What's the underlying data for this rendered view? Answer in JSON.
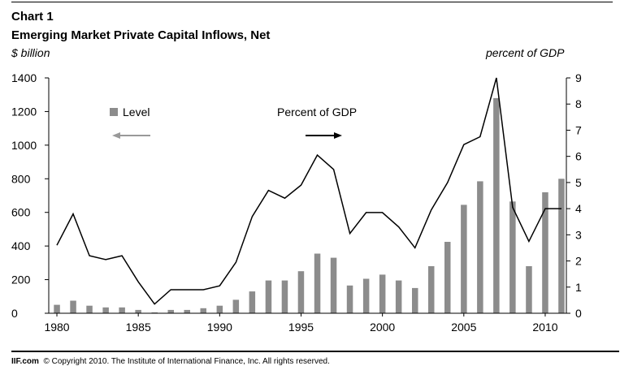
{
  "header": {
    "chart_number": "Chart 1",
    "title": "Emerging Market Private Capital Inflows, Net",
    "left_unit": "$ billion",
    "right_unit": "percent of GDP"
  },
  "footer": {
    "brand": "IIF.com",
    "notice": "© Copyright 2010.  The Institute of International Finance, Inc. All rights reserved."
  },
  "chart_data": {
    "type": "bar",
    "x": [
      1980,
      1981,
      1982,
      1983,
      1984,
      1985,
      1986,
      1987,
      1988,
      1989,
      1990,
      1991,
      1992,
      1993,
      1994,
      1995,
      1996,
      1997,
      1998,
      1999,
      2000,
      2001,
      2002,
      2003,
      2004,
      2005,
      2006,
      2007,
      2008,
      2009,
      2010,
      2011
    ],
    "series": [
      {
        "name": "Level",
        "type": "bar",
        "axis": "left",
        "color": "#8c8c8c",
        "values": [
          50,
          75,
          45,
          35,
          35,
          20,
          5,
          20,
          20,
          30,
          45,
          80,
          130,
          195,
          195,
          250,
          355,
          330,
          165,
          205,
          230,
          195,
          150,
          280,
          425,
          645,
          785,
          1280,
          665,
          280,
          720,
          800
        ]
      },
      {
        "name": "Percent of GDP",
        "type": "line",
        "axis": "right",
        "color": "#000000",
        "values": [
          2.6,
          3.8,
          2.2,
          2.05,
          2.2,
          1.2,
          0.35,
          0.9,
          0.9,
          0.9,
          1.05,
          1.95,
          3.7,
          4.7,
          4.4,
          4.9,
          6.05,
          5.5,
          3.05,
          3.85,
          3.85,
          3.3,
          2.5,
          3.95,
          5.0,
          6.45,
          6.75,
          9.0,
          4.05,
          2.75,
          4.0,
          4.0
        ]
      }
    ],
    "y_left": {
      "min": 0,
      "max": 1400,
      "ticks": [
        0,
        200,
        400,
        600,
        800,
        1000,
        1200,
        1400
      ]
    },
    "y_right": {
      "min": 0,
      "max": 9,
      "ticks": [
        0,
        1,
        2,
        3,
        4,
        5,
        6,
        7,
        8,
        9
      ]
    },
    "x_ticks": [
      1980,
      1985,
      1990,
      1995,
      2000,
      2005,
      2010
    ],
    "legend": {
      "level_label": "Level",
      "percent_label": "Percent of GDP"
    },
    "grid": false
  }
}
